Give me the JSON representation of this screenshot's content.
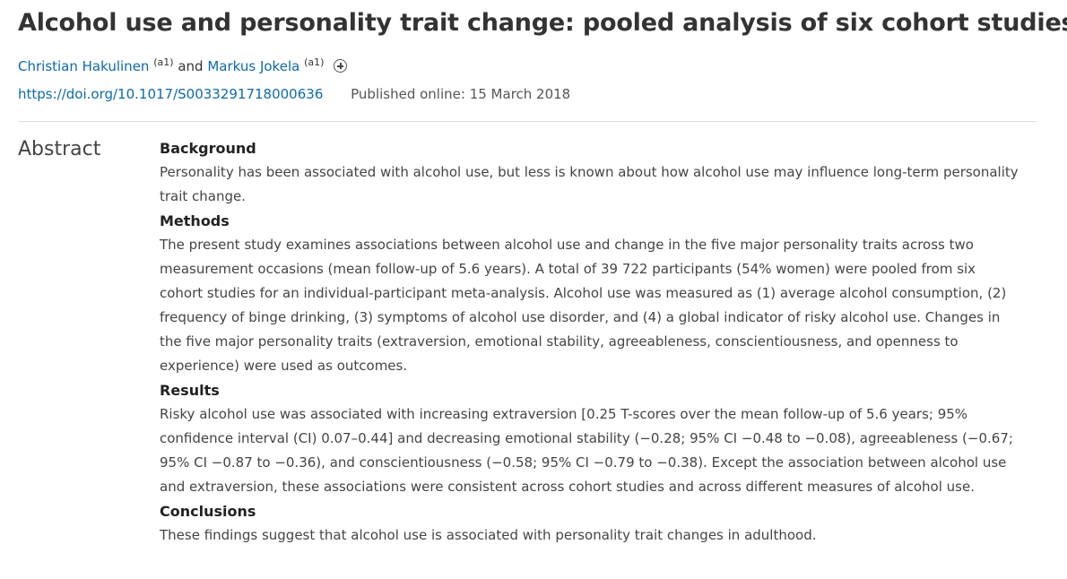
{
  "article": {
    "title": "Alcohol use and personality trait change: pooled analysis of six cohort studies",
    "authors": [
      {
        "name": "Christian Hakulinen",
        "affiliation": "(a1)"
      },
      {
        "name": "Markus Jokela",
        "affiliation": "(a1)"
      }
    ],
    "author_conjunction": "and",
    "expand_icon": "plus-circle-icon",
    "doi": "https://doi.org/10.1017/S0033291718000636",
    "published": "Published online: 15 March 2018"
  },
  "abstract": {
    "label": "Abstract",
    "sections": [
      {
        "heading": "Background",
        "text": "Personality has been associated with alcohol use, but less is known about how alcohol use may influence long-term personality trait change."
      },
      {
        "heading": "Methods",
        "text": "The present study examines associations between alcohol use and change in the five major personality traits across two measurement occasions (mean follow-up of 5.6 years). A total of 39 722 participants (54% women) were pooled from six cohort studies for an individual-participant meta-analysis. Alcohol use was measured as (1) average alcohol consumption, (2) frequency of binge drinking, (3) symptoms of alcohol use disorder, and (4) a global indicator of risky alcohol use. Changes in the five major personality traits (extraversion, emotional stability, agreeableness, conscientiousness, and openness to experience) were used as outcomes."
      },
      {
        "heading": "Results",
        "text": "Risky alcohol use was associated with increasing extraversion [0.25 T-scores over the mean follow-up of 5.6 years; 95% confidence interval (CI) 0.07–0.44] and decreasing emotional stability (−0.28; 95% CI −0.48 to −0.08), agreeableness (−0.67; 95% CI −0.87 to −0.36), and conscientiousness (−0.58; 95% CI −0.79 to −0.38). Except the association between alcohol use and extraversion, these associations were consistent across cohort studies and across different measures of alcohol use."
      },
      {
        "heading": "Conclusions",
        "text": "These findings suggest that alcohol use is associated with personality trait changes in adulthood."
      }
    ]
  },
  "colors": {
    "link": "#0e6aa8",
    "text": "#444444",
    "divider": "#dddddd"
  }
}
